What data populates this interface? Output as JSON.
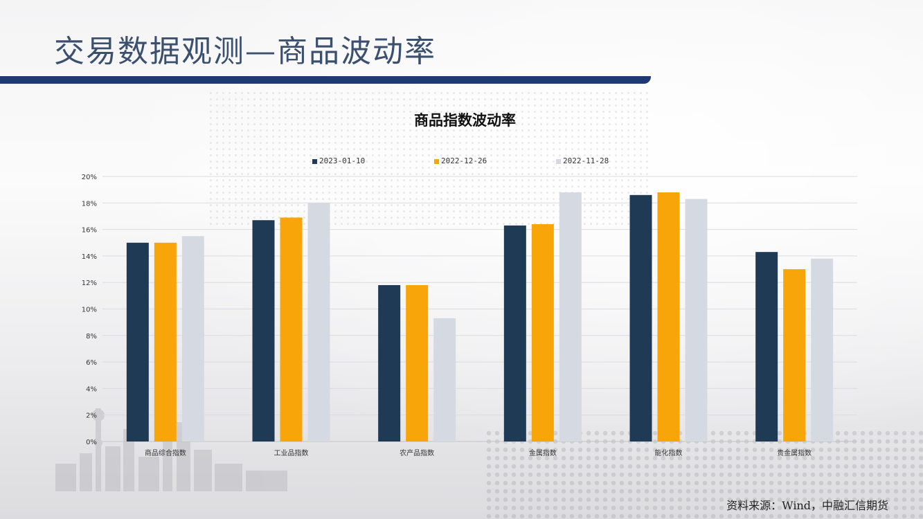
{
  "slide": {
    "title": "交易数据观测—商品波动率",
    "source": "资料来源：Wind，中融汇信期货"
  },
  "colors": {
    "title_text": "#3b4f6e",
    "title_bar": "#1f3a73"
  },
  "chart_data": {
    "type": "bar",
    "title": "商品指数波动率",
    "xlabel": "",
    "ylabel": "",
    "ylim": [
      0,
      0.2
    ],
    "y_ticks": [
      "0%",
      "2%",
      "4%",
      "6%",
      "8%",
      "10%",
      "12%",
      "14%",
      "16%",
      "18%",
      "20%"
    ],
    "grid": true,
    "legend_position": "top",
    "categories": [
      "商品综合指数",
      "工业品指数",
      "农产品指数",
      "金属指数",
      "能化指数",
      "贵金属指数"
    ],
    "series": [
      {
        "name": "2023-01-10",
        "color": "#1f3a55",
        "values": [
          0.15,
          0.167,
          0.118,
          0.163,
          0.186,
          0.143
        ]
      },
      {
        "name": "2022-12-26",
        "color": "#f8a50a",
        "values": [
          0.15,
          0.169,
          0.118,
          0.164,
          0.188,
          0.13
        ]
      },
      {
        "name": "2022-11-28",
        "color": "#d5dae2",
        "values": [
          0.155,
          0.18,
          0.093,
          0.188,
          0.183,
          0.138
        ]
      }
    ]
  }
}
